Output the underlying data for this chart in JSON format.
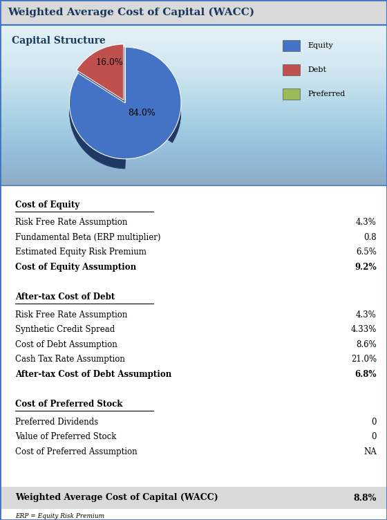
{
  "title": "Weighted Average Cost of Capital (WACC)",
  "pie_title": "Capital Structure",
  "pie_values": [
    84.0,
    16.0,
    0.001
  ],
  "pie_colors": [
    "#4472C4",
    "#C0504D",
    "#9BBB59"
  ],
  "pie_dark_colors": [
    "#1F3864",
    "#922B21",
    "#4B6316"
  ],
  "pie_legend_labels": [
    "Equity",
    "Debt",
    "Preferred"
  ],
  "pie_bg_gradient_top": "#C6D9F1",
  "pie_bg_gradient_bottom": "#EEF4FB",
  "pie_bg_color": "#C9DCF0",
  "sections": [
    {
      "header": "Cost of Equity",
      "rows": [
        {
          "label": "Risk Free Rate Assumption",
          "value": "4.3%",
          "bold": false
        },
        {
          "label": "Fundamental Beta (ERP multiplier)",
          "value": "0.8",
          "bold": false
        },
        {
          "label": "Estimated Equity Risk Premium",
          "value": "6.5%",
          "bold": false
        },
        {
          "label": "Cost of Equity Assumption",
          "value": "9.2%",
          "bold": true
        }
      ]
    },
    {
      "header": "After-tax Cost of Debt",
      "rows": [
        {
          "label": "Risk Free Rate Assumption",
          "value": "4.3%",
          "bold": false
        },
        {
          "label": "Synthetic Credit Spread",
          "value": "4.33%",
          "bold": false
        },
        {
          "label": "Cost of Debt Assumption",
          "value": "8.6%",
          "bold": false
        },
        {
          "label": "Cash Tax Rate Assumption",
          "value": "21.0%",
          "bold": false
        },
        {
          "label": "After-tax Cost of Debt Assumption",
          "value": "6.8%",
          "bold": true
        }
      ]
    },
    {
      "header": "Cost of Preferred Stock",
      "rows": [
        {
          "label": "Preferred Dividends",
          "value": "0",
          "bold": false
        },
        {
          "label": "Value of Preferred Stock",
          "value": "0",
          "bold": false
        },
        {
          "label": "Cost of Preferred Assumption",
          "value": "NA",
          "bold": false
        }
      ]
    }
  ],
  "wacc_label": "Weighted Average Cost of Capital (WACC)",
  "wacc_value": "8.8%",
  "footnote": "ERP = Equity Risk Premium",
  "header_bg": "#D9D9D9",
  "wacc_bg": "#D9D9D9",
  "outer_border_color": "#4472C4",
  "text_color": "#000000",
  "header_text_color": "#17375E"
}
